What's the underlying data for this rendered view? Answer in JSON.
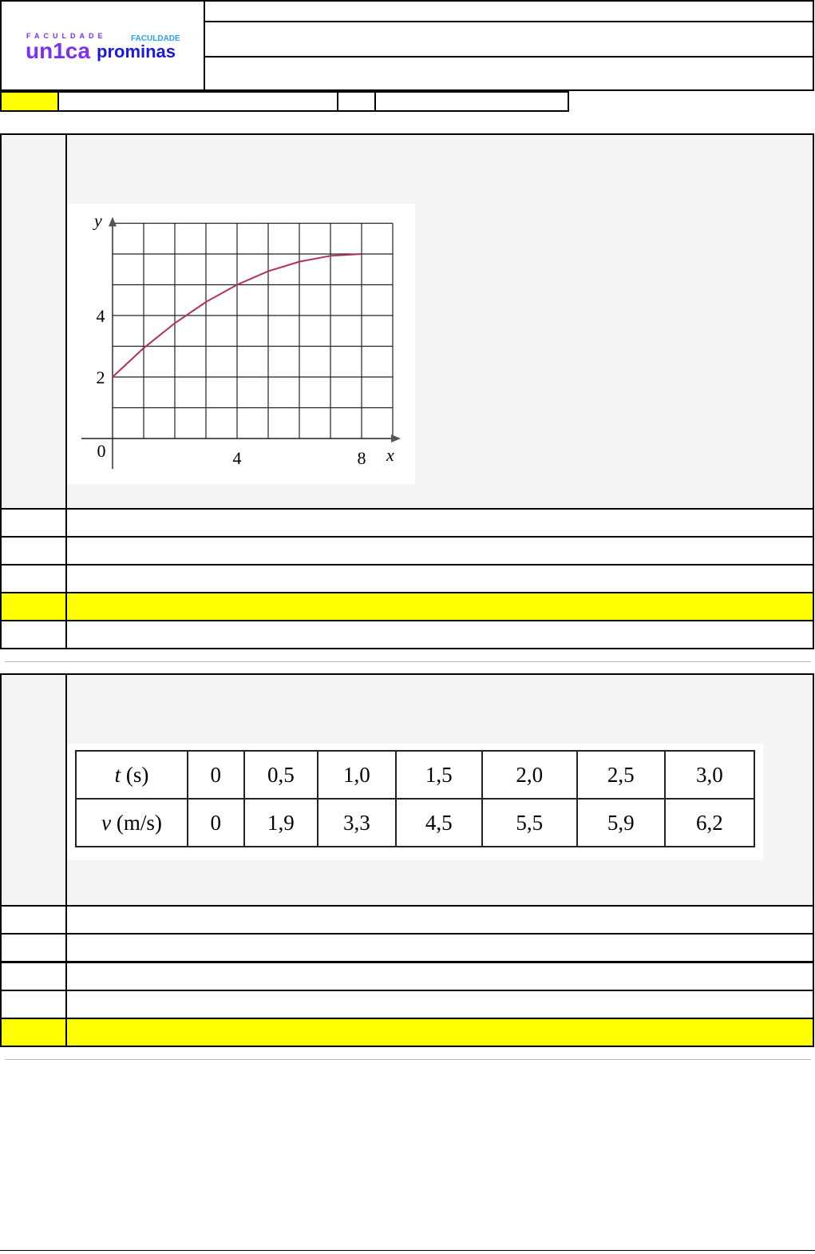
{
  "logo": {
    "unica_top": "FACULDADE",
    "unica_name": "un1ca",
    "prominas_top": "FACULDADE",
    "prominas_name": "prominas",
    "colors": {
      "unica": "#7b2ff7",
      "prominas_top": "#2aa0f0",
      "prominas_name": "#1a1adf"
    }
  },
  "highlight_color": "#ffff00",
  "chart_data": {
    "type": "line",
    "xlabel": "x",
    "ylabel": "y",
    "xticks": [
      "0",
      "4",
      "8"
    ],
    "yticks": [
      "2",
      "4"
    ],
    "xlim": [
      0,
      9
    ],
    "ylim": [
      0,
      7
    ],
    "grid": true,
    "x": [
      0,
      1,
      2,
      3,
      4,
      5,
      6,
      7,
      8
    ],
    "y": [
      2,
      2.94,
      3.75,
      4.44,
      5,
      5.44,
      5.75,
      5.94,
      6
    ],
    "color": "#b0305a"
  },
  "table": {
    "rows": [
      {
        "label_var": "t",
        "label_unit": " (s)",
        "values": [
          "0",
          "0,5",
          "1,0",
          "1,5",
          "2,0",
          "2,5",
          "3,0"
        ]
      },
      {
        "label_var": "v",
        "label_unit": " (m/s)",
        "values": [
          "0",
          "1,9",
          "3,3",
          "4,5",
          "5,5",
          "5,9",
          "6,2"
        ]
      }
    ]
  }
}
